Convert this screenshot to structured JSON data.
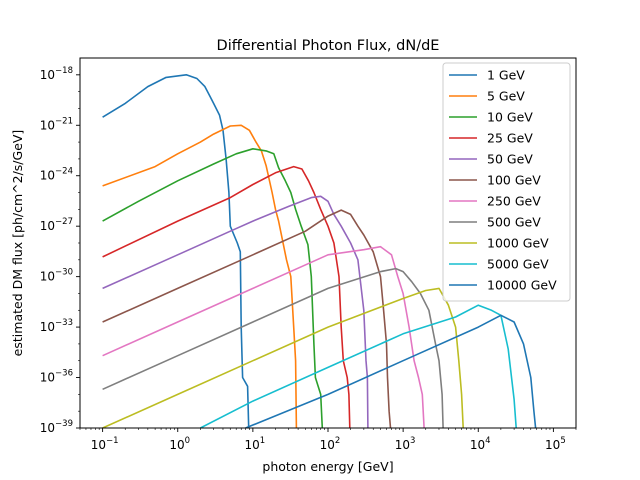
{
  "chart_data": {
    "type": "line",
    "title": "Differential Photon Flux, dN/dE",
    "xlabel": "photon energy [GeV]",
    "ylabel": "estimated DM flux [ph/cm^2/s/GeV]",
    "xscale": "log",
    "yscale": "log",
    "xlim": [
      0.05,
      200000
    ],
    "ylim": [
      1e-39,
      1e-17
    ],
    "xticks": [
      {
        "value": 0.1,
        "base": "10",
        "exp": "−1"
      },
      {
        "value": 1,
        "base": "10",
        "exp": "0"
      },
      {
        "value": 10,
        "base": "10",
        "exp": "1"
      },
      {
        "value": 100,
        "base": "10",
        "exp": "2"
      },
      {
        "value": 1000,
        "base": "10",
        "exp": "3"
      },
      {
        "value": 10000,
        "base": "10",
        "exp": "4"
      },
      {
        "value": 100000,
        "base": "10",
        "exp": "5"
      }
    ],
    "yticks": [
      {
        "value": 1e-39,
        "base": "10",
        "exp": "−39"
      },
      {
        "value": 1e-36,
        "base": "10",
        "exp": "−36"
      },
      {
        "value": 1e-33,
        "base": "10",
        "exp": "−33"
      },
      {
        "value": 1e-30,
        "base": "10",
        "exp": "−30"
      },
      {
        "value": 1e-27,
        "base": "10",
        "exp": "−27"
      },
      {
        "value": 1e-24,
        "base": "10",
        "exp": "−24"
      },
      {
        "value": 1e-21,
        "base": "10",
        "exp": "−21"
      },
      {
        "value": 1e-18,
        "base": "10",
        "exp": "−18"
      }
    ],
    "grid": false,
    "legend_position": "upper right",
    "series": [
      {
        "name": "1 GeV",
        "color": "#1f77b4",
        "points": [
          [
            0.1,
            3e-21
          ],
          [
            0.2,
            2e-20
          ],
          [
            0.4,
            2e-19
          ],
          [
            0.7,
            7e-19
          ],
          [
            1.3,
            1e-18
          ],
          [
            1.8,
            6e-19
          ],
          [
            2.3,
            2e-19
          ],
          [
            2.7,
            5e-20
          ],
          [
            3.0,
            2e-20
          ],
          [
            3.6,
            4e-21
          ],
          [
            4.0,
            5e-22
          ],
          [
            4.4,
            1e-23
          ],
          [
            4.8,
            1e-25
          ],
          [
            5.0,
            1e-27
          ],
          [
            6.2,
            1e-28
          ],
          [
            6.8,
            3e-29
          ],
          [
            7.0,
            1e-33
          ],
          [
            7.3,
            1e-36
          ],
          [
            8.5,
            3e-37
          ],
          [
            8.8,
            1e-39
          ]
        ]
      },
      {
        "name": "5 GeV",
        "color": "#ff7f0e",
        "points": [
          [
            0.1,
            2.5e-25
          ],
          [
            0.5,
            3.5e-24
          ],
          [
            1,
            2e-23
          ],
          [
            2,
            1e-22
          ],
          [
            3,
            3e-22
          ],
          [
            5,
            9e-22
          ],
          [
            7,
            1e-21
          ],
          [
            9,
            5e-22
          ],
          [
            11,
            1e-22
          ],
          [
            13,
            3e-23
          ],
          [
            15,
            4e-24
          ],
          [
            18,
            1e-25
          ],
          [
            20,
            1e-26
          ],
          [
            22,
            2e-27
          ],
          [
            28,
            1e-29
          ],
          [
            32,
            1e-30
          ],
          [
            35,
            1e-33
          ],
          [
            37,
            1e-35
          ],
          [
            38,
            1e-39
          ]
        ]
      },
      {
        "name": "10 GeV",
        "color": "#2ca02c",
        "points": [
          [
            0.1,
            2e-27
          ],
          [
            0.3,
            3e-26
          ],
          [
            1,
            5e-25
          ],
          [
            3,
            5e-24
          ],
          [
            6,
            2e-23
          ],
          [
            10,
            4e-23
          ],
          [
            15,
            3e-23
          ],
          [
            19,
            2e-23
          ],
          [
            22,
            3e-24
          ],
          [
            27,
            5e-25
          ],
          [
            32,
            1e-25
          ],
          [
            37,
            1e-26
          ],
          [
            44,
            1e-27
          ],
          [
            54,
            8e-29
          ],
          [
            60,
            1e-30
          ],
          [
            65,
            1e-34
          ],
          [
            68,
            1e-36
          ],
          [
            80,
            1e-37
          ],
          [
            84,
            1e-39
          ]
        ]
      },
      {
        "name": "25 GeV",
        "color": "#d62728",
        "points": [
          [
            0.1,
            1.5e-29
          ],
          [
            1,
            2e-27
          ],
          [
            5,
            5e-26
          ],
          [
            10,
            3e-25
          ],
          [
            20,
            1.5e-24
          ],
          [
            35,
            3.5e-24
          ],
          [
            45,
            2.5e-24
          ],
          [
            55,
            5e-25
          ],
          [
            65,
            1e-25
          ],
          [
            80,
            1e-26
          ],
          [
            100,
            1e-27
          ],
          [
            120,
            1e-28
          ],
          [
            140,
            1e-30
          ],
          [
            150,
            1e-33
          ],
          [
            160,
            1e-35
          ],
          [
            180,
            1e-36
          ],
          [
            190,
            1e-37
          ],
          [
            195,
            1e-39
          ]
        ]
      },
      {
        "name": "50 GeV",
        "color": "#9467bd",
        "points": [
          [
            0.1,
            2e-31
          ],
          [
            1,
            2e-29
          ],
          [
            5,
            5e-28
          ],
          [
            10,
            2e-27
          ],
          [
            30,
            1.5e-26
          ],
          [
            60,
            5e-26
          ],
          [
            80,
            6e-26
          ],
          [
            100,
            3e-26
          ],
          [
            120,
            5e-27
          ],
          [
            150,
            1e-27
          ],
          [
            200,
            1e-28
          ],
          [
            250,
            1e-29
          ],
          [
            300,
            1e-32
          ],
          [
            320,
            1e-35
          ],
          [
            335,
            1e-36
          ],
          [
            340,
            1e-39
          ]
        ]
      },
      {
        "name": "100 GeV",
        "color": "#8c564b",
        "points": [
          [
            0.1,
            2e-33
          ],
          [
            1,
            2e-31
          ],
          [
            10,
            2e-29
          ],
          [
            50,
            5e-28
          ],
          [
            100,
            4e-27
          ],
          [
            150,
            9e-27
          ],
          [
            200,
            5e-27
          ],
          [
            250,
            1e-27
          ],
          [
            300,
            3e-28
          ],
          [
            400,
            3e-29
          ],
          [
            500,
            1e-30
          ],
          [
            550,
            1e-32
          ],
          [
            600,
            1e-34
          ],
          [
            620,
            1e-36
          ],
          [
            650,
            1e-38
          ],
          [
            680,
            1e-39
          ]
        ]
      },
      {
        "name": "250 GeV",
        "color": "#e377c2",
        "points": [
          [
            0.1,
            2e-35
          ],
          [
            1,
            2e-33
          ],
          [
            10,
            2e-31
          ],
          [
            100,
            2e-29
          ],
          [
            300,
            4e-29
          ],
          [
            500,
            6e-29
          ],
          [
            700,
            2e-29
          ],
          [
            850,
            1e-30
          ],
          [
            1000,
            1e-31
          ],
          [
            1200,
            1e-33
          ],
          [
            1400,
            1e-35
          ],
          [
            1600,
            1e-36
          ],
          [
            1800,
            1e-37
          ],
          [
            1900,
            1e-39
          ]
        ]
      },
      {
        "name": "500 GeV",
        "color": "#7f7f7f",
        "points": [
          [
            0.1,
            2e-37
          ],
          [
            1,
            2e-35
          ],
          [
            10,
            2e-33
          ],
          [
            100,
            2e-31
          ],
          [
            500,
            2e-30
          ],
          [
            800,
            3e-30
          ],
          [
            1000,
            2e-30
          ],
          [
            1300,
            5e-31
          ],
          [
            1700,
            1e-31
          ],
          [
            2200,
            1e-32
          ],
          [
            2700,
            1e-34
          ],
          [
            3000,
            1e-35
          ],
          [
            3300,
            1e-37
          ],
          [
            3400,
            1e-39
          ]
        ]
      },
      {
        "name": "1000 GeV",
        "color": "#bcbd22",
        "points": [
          [
            0.1,
            1e-39
          ],
          [
            1,
            1e-37
          ],
          [
            10,
            1e-35
          ],
          [
            100,
            1e-33
          ],
          [
            1000,
            5e-32
          ],
          [
            2000,
            1.5e-31
          ],
          [
            3000,
            2e-31
          ],
          [
            4000,
            2e-32
          ],
          [
            5000,
            1e-33
          ],
          [
            5500,
            1e-35
          ],
          [
            6000,
            1e-37
          ],
          [
            6300,
            1e-39
          ]
        ]
      },
      {
        "name": "5000 GeV",
        "color": "#17becf",
        "points": [
          [
            2,
            1e-39
          ],
          [
            10,
            4e-38
          ],
          [
            100,
            4e-36
          ],
          [
            1000,
            4e-34
          ],
          [
            5000,
            4e-33
          ],
          [
            10000,
            2e-32
          ],
          [
            15000,
            1e-32
          ],
          [
            20000,
            5e-33
          ],
          [
            25000,
            5e-35
          ],
          [
            30000,
            5e-38
          ],
          [
            32000,
            1e-39
          ]
        ]
      },
      {
        "name": "10000 GeV",
        "color": "#1f77b4",
        "points": [
          [
            8,
            1e-39
          ],
          [
            100,
            1e-37
          ],
          [
            1000,
            1e-35
          ],
          [
            10000,
            1e-33
          ],
          [
            20000,
            5e-33
          ],
          [
            30000,
            2e-33
          ],
          [
            40000,
            1e-34
          ],
          [
            50000,
            1e-36
          ],
          [
            55000,
            1e-38
          ],
          [
            58000,
            1e-39
          ]
        ]
      }
    ]
  }
}
